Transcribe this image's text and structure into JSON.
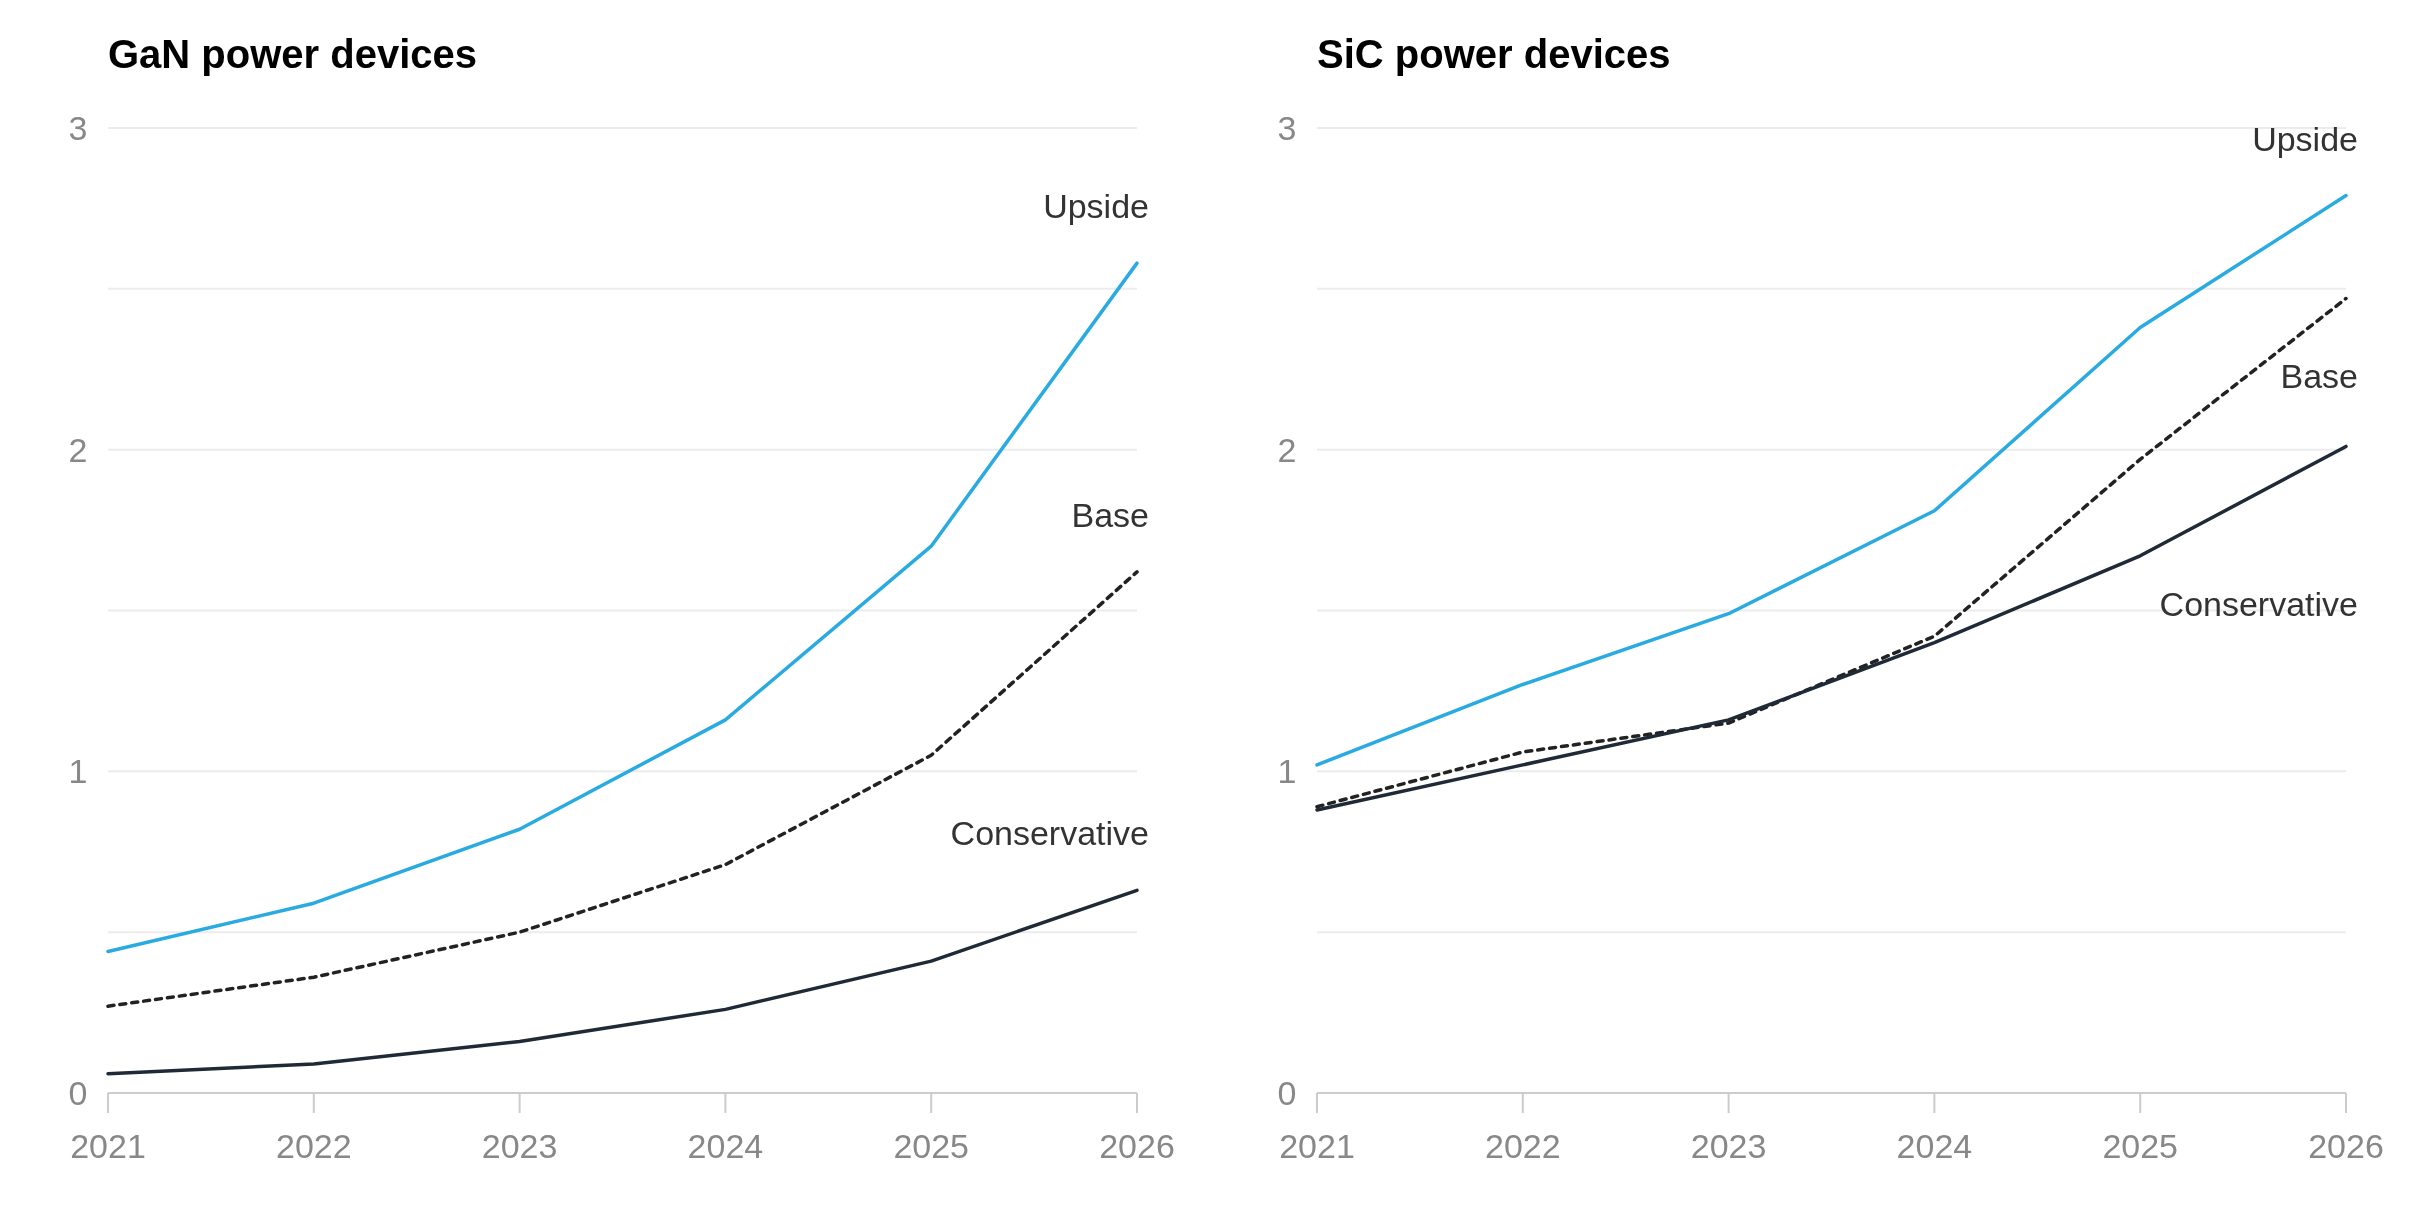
{
  "chart_data": [
    {
      "type": "line",
      "title": "GaN power devices",
      "x": [
        2021,
        2022,
        2023,
        2024,
        2025,
        2026
      ],
      "xlim": [
        2021,
        2026
      ],
      "xticks": [
        2021,
        2022,
        2023,
        2024,
        2025,
        2026
      ],
      "ylim": [
        0,
        3
      ],
      "yticks": [
        0,
        {
          "value": 0.5,
          "label": null
        },
        1,
        {
          "value": 1.5,
          "label": null
        },
        2,
        {
          "value": 2.5,
          "label": null
        },
        3
      ],
      "grid": "y",
      "series": [
        {
          "name": "Upside",
          "color": "#29abe2",
          "line_style": "solid",
          "values": [
            0.44,
            0.59,
            0.82,
            1.16,
            1.7,
            2.58
          ]
        },
        {
          "name": "Base",
          "color": "#222222",
          "line_style": "dotted",
          "values": [
            0.27,
            0.36,
            0.5,
            0.71,
            1.05,
            1.62
          ]
        },
        {
          "name": "Conservative",
          "color": "#1f2a36",
          "line_style": "solid",
          "values": [
            0.06,
            0.09,
            0.16,
            0.26,
            0.41,
            0.63
          ]
        }
      ]
    },
    {
      "type": "line",
      "title": "SiC power devices",
      "x": [
        2021,
        2022,
        2023,
        2024,
        2025,
        2026
      ],
      "xlim": [
        2021,
        2026
      ],
      "xticks": [
        2021,
        2022,
        2023,
        2024,
        2025,
        2026
      ],
      "ylim": [
        0,
        3
      ],
      "yticks": [
        0,
        {
          "value": 0.5,
          "label": null
        },
        1,
        {
          "value": 1.5,
          "label": null
        },
        2,
        {
          "value": 2.5,
          "label": null
        },
        3
      ],
      "grid": "y",
      "series": [
        {
          "name": "Upside",
          "color": "#29abe2",
          "line_style": "solid",
          "values": [
            1.02,
            1.27,
            1.49,
            1.81,
            2.38,
            2.79
          ]
        },
        {
          "name": "Base",
          "color": "#222222",
          "line_style": "dotted",
          "values": [
            0.89,
            1.06,
            1.15,
            1.42,
            1.97,
            2.47
          ]
        },
        {
          "name": "Conservative",
          "color": "#1f2a36",
          "line_style": "solid",
          "values": [
            0.88,
            1.02,
            1.16,
            1.4,
            1.67,
            2.01
          ]
        }
      ]
    }
  ]
}
